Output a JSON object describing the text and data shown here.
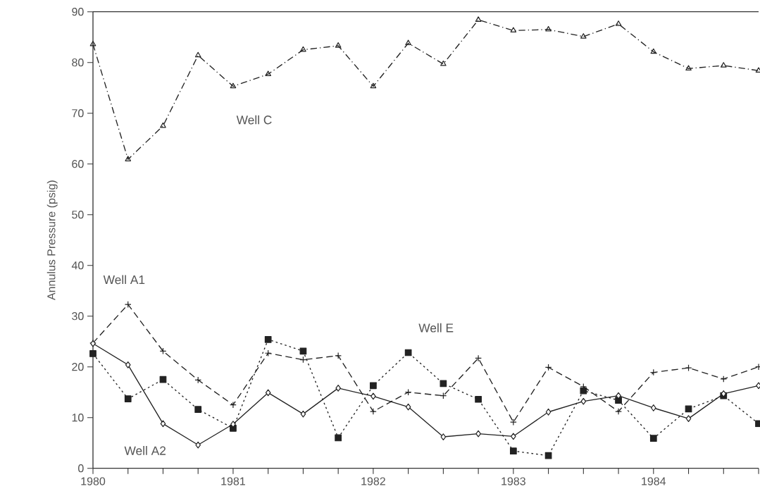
{
  "chart_data": {
    "type": "line",
    "ylabel": "Annulus Pressure (psig)",
    "x": [
      1980,
      1980.25,
      1980.5,
      1980.75,
      1981,
      1981.25,
      1981.5,
      1981.75,
      1982,
      1982.25,
      1982.5,
      1982.75,
      1983,
      1983.25,
      1983.5,
      1983.75,
      1984,
      1984.25,
      1984.5,
      1984.75
    ],
    "series": [
      {
        "name": "Well C",
        "color": "#222222",
        "marker": "triangle",
        "line_style": "dashdot",
        "values": [
          83.6,
          60.9,
          67.5,
          81.4,
          75.3,
          77.7,
          82.5,
          83.3,
          75.3,
          83.8,
          79.7,
          88.4,
          86.3,
          86.5,
          85.1,
          87.6,
          82.1,
          78.8,
          79.4,
          78.4
        ]
      },
      {
        "name": "Well A1",
        "color": "#222222",
        "marker": "cross",
        "line_style": "dashed",
        "values": [
          24.7,
          32.3,
          23.1,
          17.4,
          12.5,
          22.7,
          21.4,
          22.2,
          11.2,
          15.0,
          14.3,
          21.7,
          9.1,
          19.9,
          16.1,
          11.2,
          18.9,
          19.8,
          17.6,
          20.0
        ]
      },
      {
        "name": "Well E",
        "color": "#222222",
        "marker": "square",
        "line_style": "dotted",
        "values": [
          22.6,
          13.7,
          17.5,
          11.6,
          7.9,
          25.4,
          23.1,
          6.0,
          16.3,
          22.8,
          16.7,
          13.6,
          3.4,
          2.5,
          15.3,
          13.4,
          5.9,
          11.7,
          14.3,
          8.8
        ]
      },
      {
        "name": "Well A2",
        "color": "#222222",
        "marker": "diamond",
        "line_style": "solid",
        "values": [
          24.6,
          20.4,
          8.8,
          4.6,
          8.7,
          14.9,
          10.7,
          15.8,
          14.2,
          12.1,
          6.2,
          6.8,
          6.3,
          11.1,
          13.2,
          14.3,
          11.9,
          9.8,
          14.7,
          16.3
        ]
      }
    ],
    "xlim": [
      1980,
      1984.75
    ],
    "ylim": [
      0,
      90
    ],
    "xticks": [
      1980,
      {
        "value": 1980.25,
        "label": null
      },
      {
        "value": 1980.5,
        "label": null
      },
      {
        "value": 1980.75,
        "label": null
      },
      1981,
      {
        "value": 1981.25,
        "label": null
      },
      {
        "value": 1981.5,
        "label": null
      },
      {
        "value": 1981.75,
        "label": null
      },
      1982,
      {
        "value": 1982.25,
        "label": null
      },
      {
        "value": 1982.5,
        "label": null
      },
      {
        "value": 1982.75,
        "label": null
      },
      1983,
      {
        "value": 1983.25,
        "label": null
      },
      {
        "value": 1983.5,
        "label": null
      },
      {
        "value": 1983.75,
        "label": null
      },
      1984,
      {
        "value": 1984.25,
        "label": null
      },
      {
        "value": 1984.5,
        "label": null
      },
      {
        "value": 1984.75,
        "label": null
      }
    ],
    "yticks": [
      0,
      10,
      20,
      30,
      40,
      50,
      60,
      70,
      80,
      90
    ],
    "grid": false
  }
}
